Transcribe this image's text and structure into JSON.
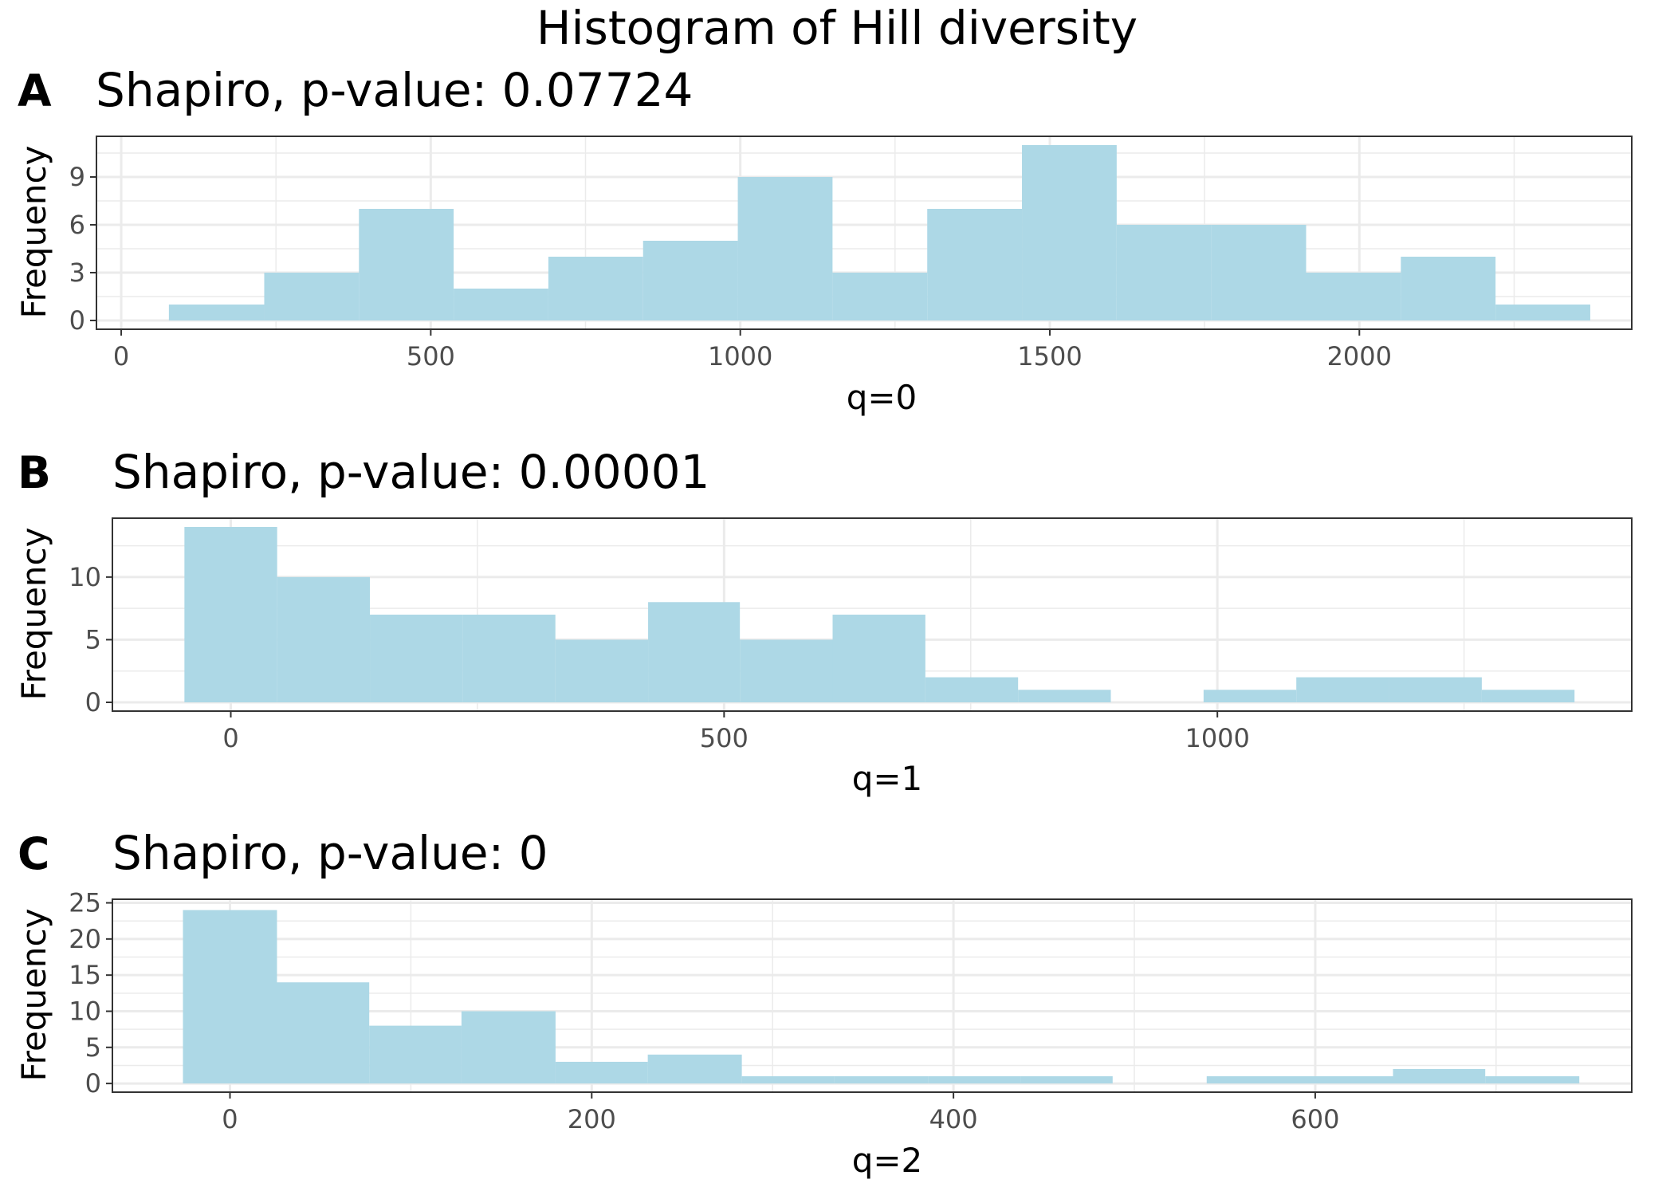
{
  "title": "Histogram of Hill diversity",
  "chart_data": [
    {
      "type": "bar",
      "tag": "A",
      "title": "Shapiro, p-value: 0.07724",
      "xlabel": "q=0",
      "ylabel": "Frequency",
      "xlim": [
        -40,
        2440
      ],
      "ylim": [
        -0.55,
        11.55
      ],
      "xticks": [
        0,
        500,
        1000,
        1500,
        2000
      ],
      "yticks": [
        0,
        3,
        6,
        9
      ],
      "bins": [
        {
          "x0": 77,
          "x1": 231,
          "count": 1
        },
        {
          "x0": 231,
          "x1": 384,
          "count": 3
        },
        {
          "x0": 384,
          "x1": 537,
          "count": 7
        },
        {
          "x0": 537,
          "x1": 690,
          "count": 2
        },
        {
          "x0": 690,
          "x1": 843,
          "count": 4
        },
        {
          "x0": 843,
          "x1": 996,
          "count": 5
        },
        {
          "x0": 996,
          "x1": 1149,
          "count": 9
        },
        {
          "x0": 1149,
          "x1": 1302,
          "count": 3
        },
        {
          "x0": 1302,
          "x1": 1455,
          "count": 7
        },
        {
          "x0": 1455,
          "x1": 1608,
          "count": 11
        },
        {
          "x0": 1608,
          "x1": 1761,
          "count": 6
        },
        {
          "x0": 1761,
          "x1": 1914,
          "count": 6
        },
        {
          "x0": 1914,
          "x1": 2067,
          "count": 3
        },
        {
          "x0": 2067,
          "x1": 2220,
          "count": 4
        },
        {
          "x0": 2220,
          "x1": 2373,
          "count": 1
        }
      ]
    },
    {
      "type": "bar",
      "tag": "B",
      "title": "Shapiro, p-value: 0.00001",
      "xlabel": "q=1",
      "ylabel": "Frequency",
      "xlim": [
        -120,
        1420
      ],
      "ylim": [
        -0.7,
        14.7
      ],
      "xticks": [
        0,
        500,
        1000
      ],
      "yticks": [
        0,
        5,
        10
      ],
      "bins": [
        {
          "x0": -47,
          "x1": 47,
          "count": 14
        },
        {
          "x0": 47,
          "x1": 141,
          "count": 10
        },
        {
          "x0": 141,
          "x1": 235,
          "count": 7
        },
        {
          "x0": 235,
          "x1": 329,
          "count": 7
        },
        {
          "x0": 329,
          "x1": 423,
          "count": 5
        },
        {
          "x0": 423,
          "x1": 516,
          "count": 8
        },
        {
          "x0": 516,
          "x1": 610,
          "count": 5
        },
        {
          "x0": 610,
          "x1": 704,
          "count": 7
        },
        {
          "x0": 704,
          "x1": 798,
          "count": 2
        },
        {
          "x0": 798,
          "x1": 892,
          "count": 1
        },
        {
          "x0": 892,
          "x1": 986,
          "count": 0
        },
        {
          "x0": 986,
          "x1": 1080,
          "count": 1
        },
        {
          "x0": 1080,
          "x1": 1174,
          "count": 2
        },
        {
          "x0": 1174,
          "x1": 1268,
          "count": 2
        },
        {
          "x0": 1268,
          "x1": 1362,
          "count": 1
        }
      ]
    },
    {
      "type": "bar",
      "tag": "C",
      "title": "Shapiro, p-value: 0",
      "xlabel": "q=2",
      "ylabel": "Frequency",
      "xlim": [
        -65,
        775
      ],
      "ylim": [
        -1.2,
        25.5
      ],
      "xticks": [
        0,
        200,
        400,
        600
      ],
      "yticks": [
        0,
        5,
        10,
        15,
        20,
        25
      ],
      "bins": [
        {
          "x0": -26,
          "x1": 26,
          "count": 24
        },
        {
          "x0": 26,
          "x1": 77,
          "count": 14
        },
        {
          "x0": 77,
          "x1": 128,
          "count": 8
        },
        {
          "x0": 128,
          "x1": 180,
          "count": 10
        },
        {
          "x0": 180,
          "x1": 231,
          "count": 3
        },
        {
          "x0": 231,
          "x1": 283,
          "count": 4
        },
        {
          "x0": 283,
          "x1": 334,
          "count": 1
        },
        {
          "x0": 334,
          "x1": 386,
          "count": 1
        },
        {
          "x0": 386,
          "x1": 437,
          "count": 1
        },
        {
          "x0": 437,
          "x1": 488,
          "count": 1
        },
        {
          "x0": 488,
          "x1": 540,
          "count": 0
        },
        {
          "x0": 540,
          "x1": 591,
          "count": 1
        },
        {
          "x0": 591,
          "x1": 643,
          "count": 1
        },
        {
          "x0": 643,
          "x1": 694,
          "count": 2
        },
        {
          "x0": 694,
          "x1": 746,
          "count": 1
        }
      ]
    }
  ],
  "colors": {
    "bar": "#add8e6",
    "frame": "#333333",
    "grid": "#ebebeb"
  }
}
